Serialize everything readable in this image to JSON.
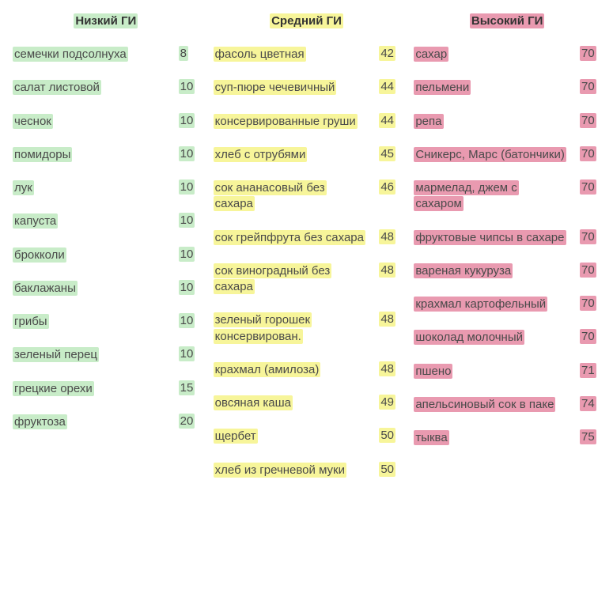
{
  "colors": {
    "low": "#c8ecc8",
    "mid": "#f7f59a",
    "high": "#e99ab0",
    "text": "#4a4a4a",
    "head_text": "#333333",
    "background": "#ffffff"
  },
  "typography": {
    "font_family": "Arial, Helvetica, sans-serif",
    "font_size_pt": 11,
    "header_weight": 700
  },
  "columns": [
    {
      "key": "low",
      "header": "Низкий ГИ",
      "rows": [
        {
          "name": "семечки подсолнуха",
          "value": "8"
        },
        {
          "name": "салат листовой",
          "value": "10"
        },
        {
          "name": "чеснок",
          "value": "10"
        },
        {
          "name": "помидоры",
          "value": "10"
        },
        {
          "name": "лук",
          "value": "10"
        },
        {
          "name": "капуста",
          "value": "10"
        },
        {
          "name": "брокколи",
          "value": "10"
        },
        {
          "name": "баклажаны",
          "value": "10"
        },
        {
          "name": "грибы",
          "value": "10"
        },
        {
          "name": "зеленый перец",
          "value": "10"
        },
        {
          "name": "грецкие орехи",
          "value": "15"
        },
        {
          "name": "фруктоза",
          "value": "20"
        }
      ]
    },
    {
      "key": "mid",
      "header": "Средний ГИ",
      "rows": [
        {
          "name": "фасоль цветная",
          "value": "42"
        },
        {
          "name": "суп-пюре чечевичный",
          "value": "44"
        },
        {
          "name": "консервированные груши",
          "value": "44"
        },
        {
          "name": "хлеб с отрубями",
          "value": "45"
        },
        {
          "name": "сок ананасовый без сахара",
          "value": "46"
        },
        {
          "name": "сок грейпфрута без сахара",
          "value": "48"
        },
        {
          "name": "сок виноградный без сахара",
          "value": "48"
        },
        {
          "name": "зеленый горошек консервирован.",
          "value": "48"
        },
        {
          "name": "крахмал (амилоза)",
          "value": "48"
        },
        {
          "name": "овсяная каша",
          "value": "49"
        },
        {
          "name": "щербет",
          "value": "50"
        },
        {
          "name": "хлеб из гречневой муки",
          "value": "50"
        }
      ]
    },
    {
      "key": "high",
      "header": "Высокий ГИ",
      "rows": [
        {
          "name": "сахар",
          "value": "70"
        },
        {
          "name": "пельмени",
          "value": "70"
        },
        {
          "name": "репа",
          "value": "70"
        },
        {
          "name": "Сникерс, Марс (батончики)",
          "value": "70"
        },
        {
          "name": "мармелад, джем с сахаром",
          "value": "70"
        },
        {
          "name": "фруктовые чипсы в сахаре",
          "value": "70"
        },
        {
          "name": "вареная кукуруза",
          "value": "70"
        },
        {
          "name": "крахмал картофельный",
          "value": "70"
        },
        {
          "name": "шоколад молочный",
          "value": "70"
        },
        {
          "name": "пшено",
          "value": "71"
        },
        {
          "name": "апельсиновый сок в паке",
          "value": "74"
        },
        {
          "name": "тыква",
          "value": "75"
        }
      ]
    }
  ]
}
